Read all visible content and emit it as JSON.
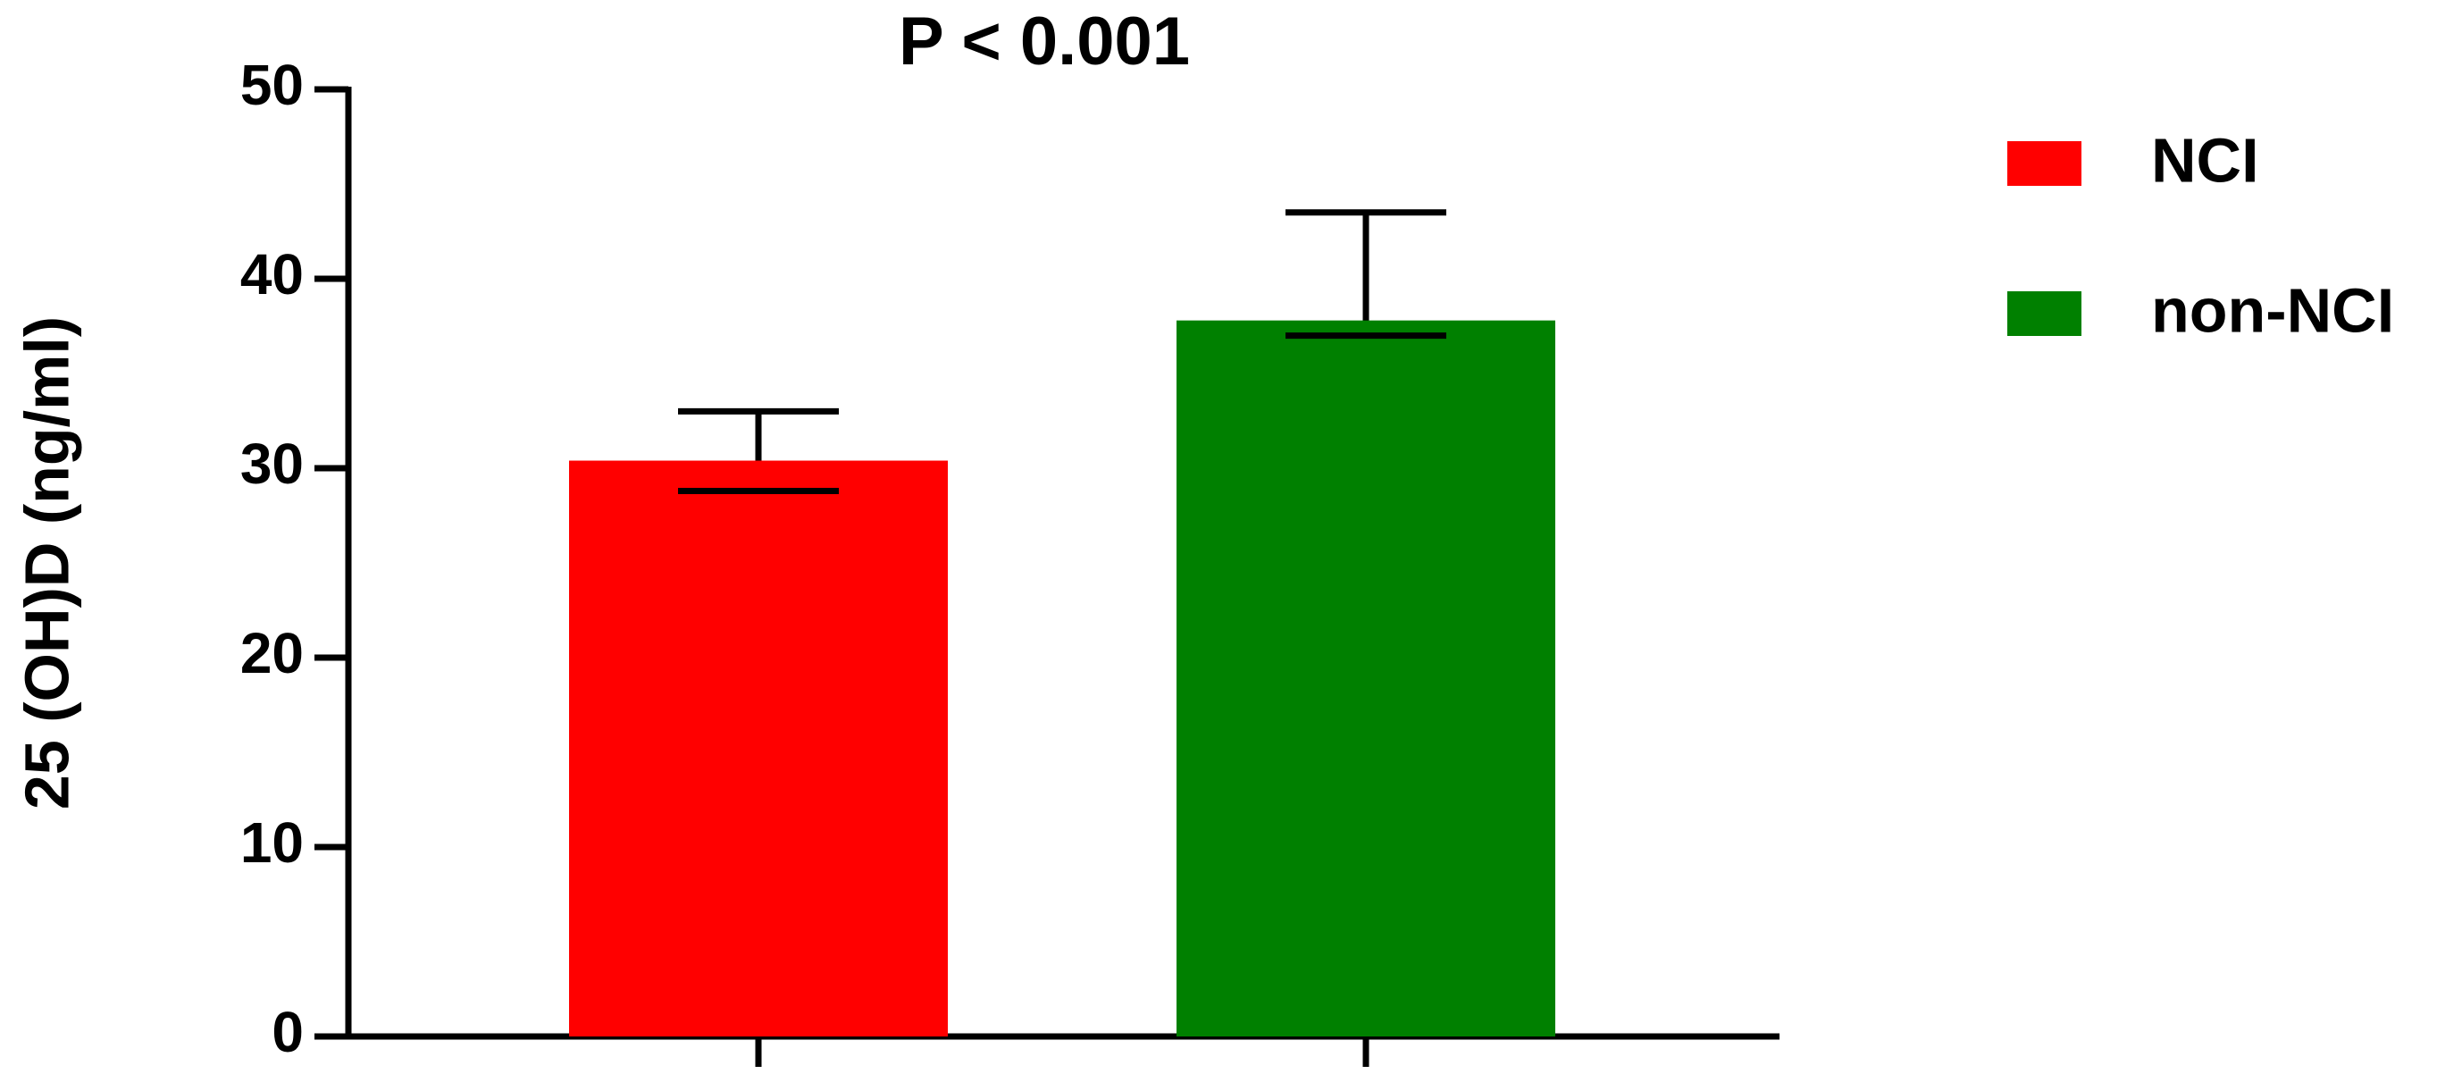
{
  "chart_data": {
    "type": "bar",
    "title": "P < 0.001",
    "y_label": "25 (OH)D (ng/ml)",
    "categories": [
      null,
      null
    ],
    "series": [
      {
        "name": "NCI",
        "color": "#ff0000",
        "values": [
          30.4,
          null
        ],
        "error_lower": [
          28.8,
          null
        ],
        "error_upper": [
          33.0,
          null
        ]
      },
      {
        "name": "non-NCI",
        "color": "#008000",
        "values": [
          null,
          37.8
        ],
        "error_lower": [
          null,
          37.0
        ],
        "error_upper": [
          null,
          43.5
        ]
      }
    ],
    "ylim": [
      0,
      50
    ],
    "yticks": [
      0,
      10,
      20,
      30,
      40,
      50
    ],
    "legend": "right"
  }
}
